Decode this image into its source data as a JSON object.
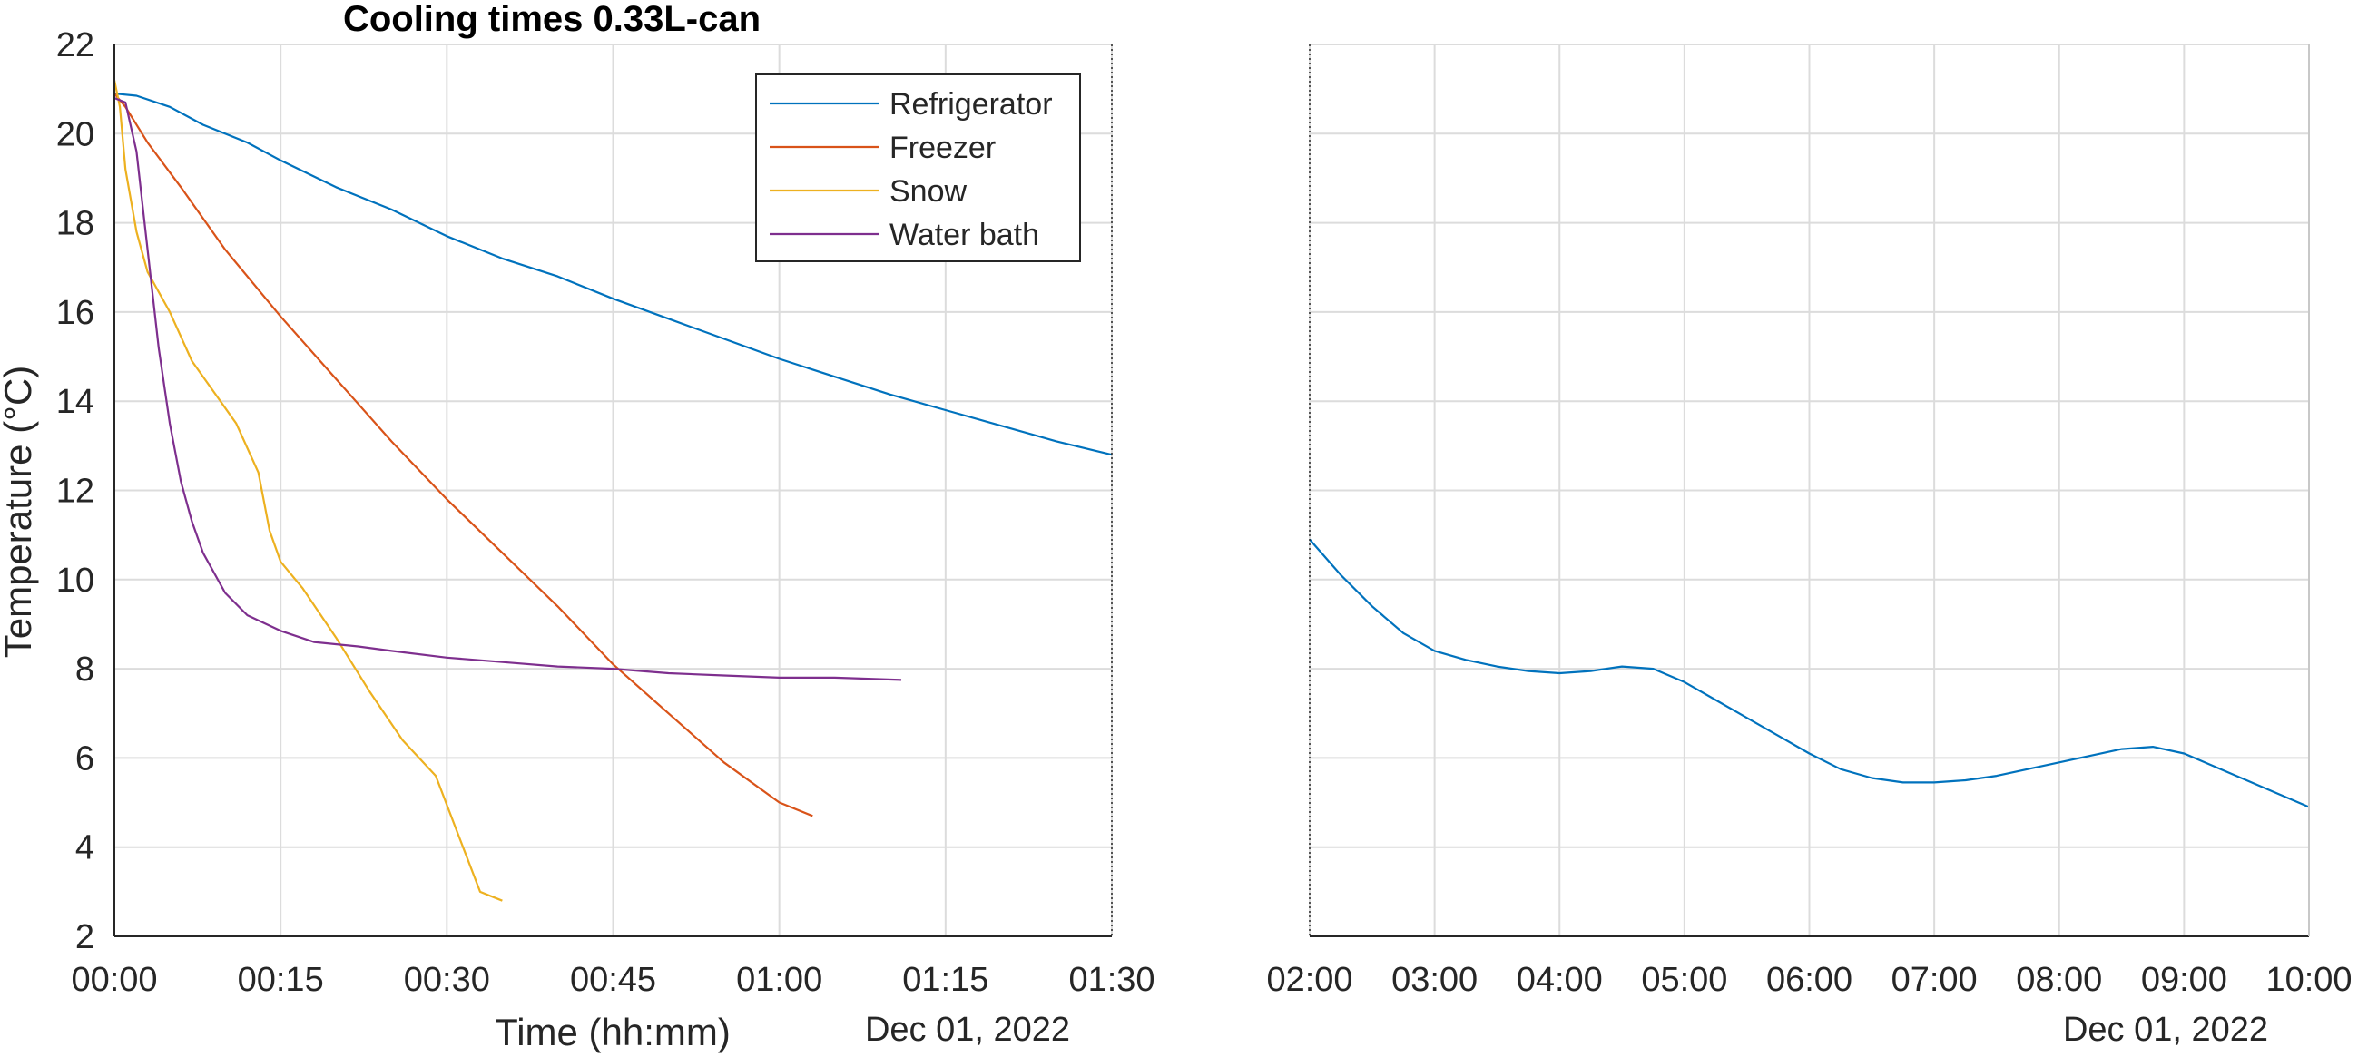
{
  "chart_data": {
    "type": "line",
    "title": "Cooling times 0.33L-can",
    "xlabel": "Time (hh:mm)",
    "ylabel": "Temperature (°C)",
    "ylim": [
      2,
      22
    ],
    "y_ticks": [
      2,
      4,
      6,
      8,
      10,
      12,
      14,
      16,
      18,
      20,
      22
    ],
    "grid": true,
    "legend_position": "top (inside left panel)",
    "left_panel": {
      "xlim_minutes": [
        0,
        90
      ],
      "x_tick_labels": [
        "00:00",
        "00:15",
        "00:30",
        "00:45",
        "01:00",
        "01:15",
        "01:30"
      ],
      "x_date_label": "Dec 01, 2022",
      "series": [
        {
          "name": "Refrigerator",
          "color": "#0072BD",
          "x_minutes": [
            0,
            2,
            5,
            8,
            12,
            15,
            20,
            25,
            30,
            35,
            40,
            45,
            50,
            55,
            60,
            65,
            70,
            75,
            80,
            85,
            90
          ],
          "y": [
            20.9,
            20.85,
            20.6,
            20.2,
            19.8,
            19.4,
            18.8,
            18.3,
            17.7,
            17.2,
            16.8,
            16.3,
            15.85,
            15.4,
            14.95,
            14.55,
            14.15,
            13.8,
            13.45,
            13.1,
            12.8
          ]
        },
        {
          "name": "Freezer",
          "color": "#D95319",
          "x_minutes": [
            0,
            1,
            3,
            6,
            10,
            15,
            20,
            25,
            30,
            35,
            40,
            45,
            50,
            55,
            60,
            63
          ],
          "y": [
            20.9,
            20.6,
            19.8,
            18.8,
            17.4,
            15.9,
            14.5,
            13.1,
            11.8,
            10.6,
            9.4,
            8.1,
            7.0,
            5.9,
            5.0,
            4.7
          ]
        },
        {
          "name": "Snow",
          "color": "#EDB120",
          "x_minutes": [
            0,
            0.5,
            1,
            2,
            3,
            5,
            7,
            9,
            11,
            13,
            14,
            15,
            17,
            20,
            23,
            26,
            29,
            31,
            33,
            34,
            35
          ],
          "y": [
            21.2,
            20.6,
            19.2,
            17.8,
            16.9,
            16.0,
            14.9,
            14.2,
            13.5,
            12.4,
            11.1,
            10.4,
            9.8,
            8.7,
            7.5,
            6.4,
            5.6,
            4.3,
            3.0,
            2.9,
            2.8
          ]
        },
        {
          "name": "Water bath",
          "color": "#7E2F8E",
          "x_minutes": [
            0,
            1,
            2,
            3,
            4,
            5,
            6,
            7,
            8,
            10,
            12,
            15,
            18,
            22,
            25,
            30,
            35,
            40,
            45,
            50,
            55,
            60,
            65,
            71
          ],
          "y": [
            20.8,
            20.7,
            19.6,
            17.4,
            15.2,
            13.5,
            12.2,
            11.3,
            10.6,
            9.7,
            9.2,
            8.85,
            8.6,
            8.5,
            8.4,
            8.25,
            8.15,
            8.05,
            8.0,
            7.9,
            7.85,
            7.8,
            7.8,
            7.75
          ]
        }
      ]
    },
    "right_panel": {
      "xlim_hours": [
        2,
        10
      ],
      "x_tick_labels": [
        "02:00",
        "03:00",
        "04:00",
        "05:00",
        "06:00",
        "07:00",
        "08:00",
        "09:00",
        "10:00"
      ],
      "x_date_label": "Dec 01, 2022",
      "series": [
        {
          "name": "Refrigerator",
          "color": "#0072BD",
          "x_hours": [
            2.0,
            2.25,
            2.5,
            2.75,
            3.0,
            3.25,
            3.5,
            3.75,
            4.0,
            4.25,
            4.5,
            4.75,
            5.0,
            5.25,
            5.5,
            5.75,
            6.0,
            6.25,
            6.5,
            6.75,
            7.0,
            7.25,
            7.5,
            7.75,
            8.0,
            8.25,
            8.5,
            8.75,
            9.0,
            9.25,
            9.5,
            9.75,
            10.0
          ],
          "y": [
            10.9,
            10.1,
            9.4,
            8.8,
            8.4,
            8.2,
            8.05,
            7.95,
            7.9,
            7.95,
            8.05,
            8.0,
            7.7,
            7.3,
            6.9,
            6.5,
            6.1,
            5.75,
            5.55,
            5.45,
            5.45,
            5.5,
            5.6,
            5.75,
            5.9,
            6.05,
            6.2,
            6.25,
            6.1,
            5.8,
            5.5,
            5.2,
            4.9
          ]
        }
      ]
    }
  }
}
